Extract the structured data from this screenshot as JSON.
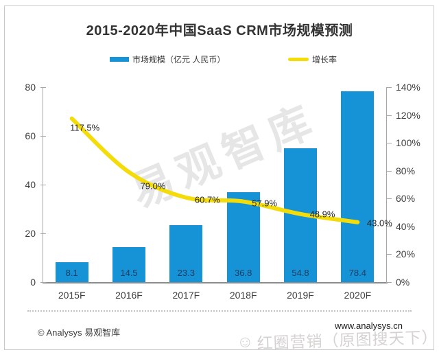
{
  "title": "2015-2020年中国SaaS CRM市场规模预测",
  "legend": {
    "market_size_label": "市场规模（亿元 人民币）",
    "growth_rate_label": "增长率"
  },
  "colors": {
    "bar": "#1593d6",
    "line": "#f3dc0a",
    "bar_value_label": "#1f3c5f"
  },
  "chart_data": {
    "type": "bar",
    "subtype": "combo bar + line, dual axis",
    "title": "2015-2020年中国SaaS CRM市场规模预测",
    "categories": [
      "2015F",
      "2016F",
      "2017F",
      "2018F",
      "2019F",
      "2020F"
    ],
    "series": [
      {
        "name": "市场规模（亿元 人民币）",
        "type": "bar",
        "axis": "left",
        "color": "#1593d6",
        "values": [
          8.1,
          14.5,
          23.3,
          36.8,
          54.8,
          78.4
        ],
        "value_labels": [
          "8.1",
          "14.5",
          "23.3",
          "36.8",
          "54.8",
          "78.4"
        ]
      },
      {
        "name": "增长率",
        "type": "line",
        "axis": "right",
        "color": "#f3dc0a",
        "values": [
          117.5,
          79.0,
          60.7,
          57.9,
          48.9,
          43.0
        ],
        "value_labels": [
          "117.5%",
          "79.0%",
          "60.7%",
          "57.9%",
          "48.9%",
          "43.0%"
        ]
      }
    ],
    "left_axis": {
      "min": 0,
      "max": 80,
      "ticks": [
        0,
        20,
        40,
        60,
        80
      ],
      "tick_labels": [
        "0",
        "20",
        "40",
        "60",
        "80"
      ]
    },
    "right_axis": {
      "min": 0,
      "max": 140,
      "ticks": [
        0,
        20,
        40,
        60,
        80,
        100,
        120,
        140
      ],
      "tick_labels": [
        "0%",
        "20%",
        "40%",
        "60%",
        "80%",
        "100%",
        "120%",
        "140%"
      ]
    },
    "grid": false,
    "legend_position": "top"
  },
  "watermarks": {
    "diagonal": "易观智库",
    "bottom": "红圈营销（原图搜天下）",
    "bottom_icon": "smiley-face-icon"
  },
  "footer": {
    "left": "© Analysys 易观智库",
    "right": "www.analysys.cn"
  }
}
